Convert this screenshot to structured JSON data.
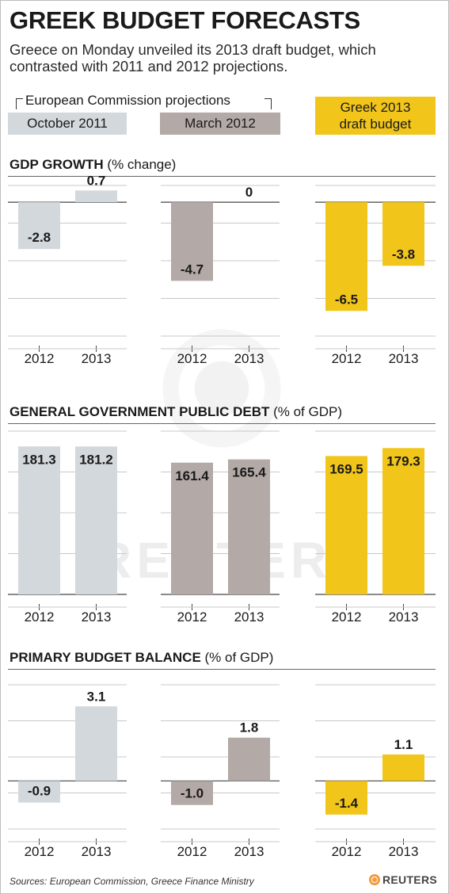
{
  "title": "GREEK BUDGET FORECASTS",
  "subtitle": "Greece on Monday unveiled its 2013 draft budget, which contrasted with 2011 and 2012 projections.",
  "legend": {
    "group_label": "European Commission projections",
    "items": [
      {
        "label": "October 2011",
        "color": "#d3d8dc"
      },
      {
        "label": "March 2012",
        "color": "#b3a9a6"
      },
      {
        "label": "Greek 2013 draft budget",
        "color": "#f1c51a"
      }
    ]
  },
  "sections": [
    {
      "title_bold": "GDP GROWTH",
      "title_rest": " (% change)"
    },
    {
      "title_bold": "GENERAL GOVERNMENT PUBLIC DEBT",
      "title_rest": " (% of GDP)"
    },
    {
      "title_bold": "PRIMARY BUDGET BALANCE",
      "title_rest": " (% of GDP)"
    }
  ],
  "chart_data": [
    {
      "type": "bar",
      "title": "GDP GROWTH (% change)",
      "categories": [
        "2012",
        "2013"
      ],
      "series": [
        {
          "name": "October 2011",
          "values": [
            -2.8,
            0.7
          ],
          "color": "#d3d8dc"
        },
        {
          "name": "March 2012",
          "values": [
            -4.7,
            0
          ],
          "color": "#b3a9a6"
        },
        {
          "name": "Greek 2013 draft budget",
          "values": [
            -6.5,
            -3.8
          ],
          "color": "#f1c51a"
        }
      ],
      "value_labels": [
        [
          "-2.8",
          "0.7"
        ],
        [
          "-4.7",
          "0"
        ],
        [
          "-6.5",
          "-3.8"
        ]
      ],
      "ylim": [
        -8,
        1
      ],
      "grid": true
    },
    {
      "type": "bar",
      "title": "GENERAL GOVERNMENT PUBLIC DEBT (% of GDP)",
      "categories": [
        "2012",
        "2013"
      ],
      "series": [
        {
          "name": "October 2011",
          "values": [
            181.3,
            181.2
          ],
          "color": "#d3d8dc"
        },
        {
          "name": "March 2012",
          "values": [
            161.4,
            165.4
          ],
          "color": "#b3a9a6"
        },
        {
          "name": "Greek 2013 draft budget",
          "values": [
            169.5,
            179.3
          ],
          "color": "#f1c51a"
        }
      ],
      "value_labels": [
        [
          "181.3",
          "181.2"
        ],
        [
          "161.4",
          "165.4"
        ],
        [
          "169.5",
          "179.3"
        ]
      ],
      "ylim": [
        0,
        200
      ],
      "grid": true
    },
    {
      "type": "bar",
      "title": "PRIMARY BUDGET BALANCE (% of GDP)",
      "categories": [
        "2012",
        "2013"
      ],
      "series": [
        {
          "name": "October 2011",
          "values": [
            -0.9,
            3.1
          ],
          "color": "#d3d8dc"
        },
        {
          "name": "March 2012",
          "values": [
            -1.0,
            1.8
          ],
          "color": "#b3a9a6"
        },
        {
          "name": "Greek 2013 draft budget",
          "values": [
            -1.4,
            1.1
          ],
          "color": "#f1c51a"
        }
      ],
      "value_labels": [
        [
          "-0.9",
          "3.1"
        ],
        [
          "-1.0",
          "1.8"
        ],
        [
          "-1.4",
          "1.1"
        ]
      ],
      "ylim": [
        -2,
        4
      ],
      "grid": true
    }
  ],
  "source": "Sources: European Commission, Greece Finance Ministry",
  "brand": "REUTERS",
  "watermark": "REUTERS"
}
